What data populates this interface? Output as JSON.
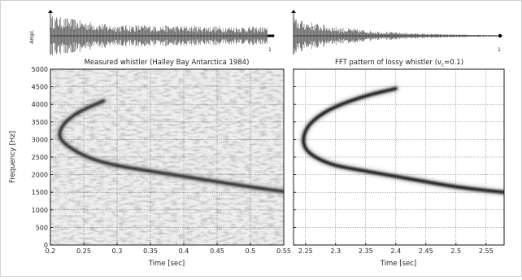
{
  "chart_data": [
    {
      "type": "heatmap",
      "title": "Measured whistler (Halley Bay Antarctica 1984)",
      "xlabel": "Time  [sec]",
      "ylabel": "Frequency  [Hz]",
      "xlim": [
        0.2,
        0.55
      ],
      "ylim": [
        0,
        5000
      ],
      "xticks": [
        "0.2",
        "0.25",
        "0.3",
        "0.35",
        "0.4",
        "0.45",
        "0.5",
        "0.55"
      ],
      "yticks": [
        "0",
        "500",
        "1000",
        "1500",
        "2000",
        "2500",
        "3000",
        "3500",
        "4000",
        "4500",
        "5000"
      ],
      "grid": true,
      "waveform": {
        "ylabel": "Ampl.",
        "end_label": "1"
      },
      "whistler_trace": {
        "name": "",
        "x": [
          0.28,
          0.255,
          0.235,
          0.22,
          0.213,
          0.215,
          0.23,
          0.26,
          0.3,
          0.35,
          0.4,
          0.45,
          0.5,
          0.55
        ],
        "y": [
          4100,
          3900,
          3700,
          3450,
          3200,
          3000,
          2750,
          2450,
          2250,
          2100,
          1950,
          1800,
          1650,
          1520
        ]
      }
    },
    {
      "type": "heatmap",
      "title": "FFT pattern of lossy whistler (ν",
      "title_sub": "c",
      "title_end": "=0.1)",
      "xlabel": "Time  [sec]",
      "ylabel": "",
      "xlim": [
        2.23,
        2.58
      ],
      "ylim": [
        0,
        5000
      ],
      "xticks": [
        "2.25",
        "2.3",
        "2.35",
        "2.4",
        "2.45",
        "2.5",
        "2.55"
      ],
      "grid": true,
      "waveform": {
        "ylabel": "",
        "end_label": "1"
      },
      "whistler_trace": {
        "name": "",
        "x": [
          2.4,
          2.35,
          2.3,
          2.27,
          2.252,
          2.245,
          2.25,
          2.27,
          2.3,
          2.35,
          2.4,
          2.45,
          2.5,
          2.55,
          2.58
        ],
        "y": [
          4450,
          4250,
          3950,
          3650,
          3350,
          3000,
          2700,
          2450,
          2250,
          2100,
          1950,
          1800,
          1650,
          1550,
          1500
        ]
      }
    }
  ]
}
